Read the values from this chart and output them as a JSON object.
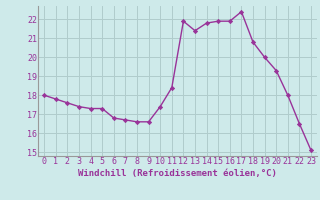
{
  "x": [
    0,
    1,
    2,
    3,
    4,
    5,
    6,
    7,
    8,
    9,
    10,
    11,
    12,
    13,
    14,
    15,
    16,
    17,
    18,
    19,
    20,
    21,
    22,
    23
  ],
  "y": [
    18.0,
    17.8,
    17.6,
    17.4,
    17.3,
    17.3,
    16.8,
    16.7,
    16.6,
    16.6,
    17.4,
    18.4,
    21.9,
    21.4,
    21.8,
    21.9,
    21.9,
    22.4,
    20.8,
    20.0,
    19.3,
    18.0,
    16.5,
    15.1
  ],
  "line_color": "#993399",
  "marker": "D",
  "marker_size": 2.2,
  "bg_color": "#ceeaea",
  "grid_color": "#b0cccc",
  "xlabel": "Windchill (Refroidissement éolien,°C)",
  "xlim": [
    -0.5,
    23.5
  ],
  "ylim": [
    14.8,
    22.7
  ],
  "yticks": [
    15,
    16,
    17,
    18,
    19,
    20,
    21,
    22
  ],
  "xticks": [
    0,
    1,
    2,
    3,
    4,
    5,
    6,
    7,
    8,
    9,
    10,
    11,
    12,
    13,
    14,
    15,
    16,
    17,
    18,
    19,
    20,
    21,
    22,
    23
  ],
  "xlabel_fontsize": 6.5,
  "tick_fontsize": 6.0,
  "line_width": 1.0
}
